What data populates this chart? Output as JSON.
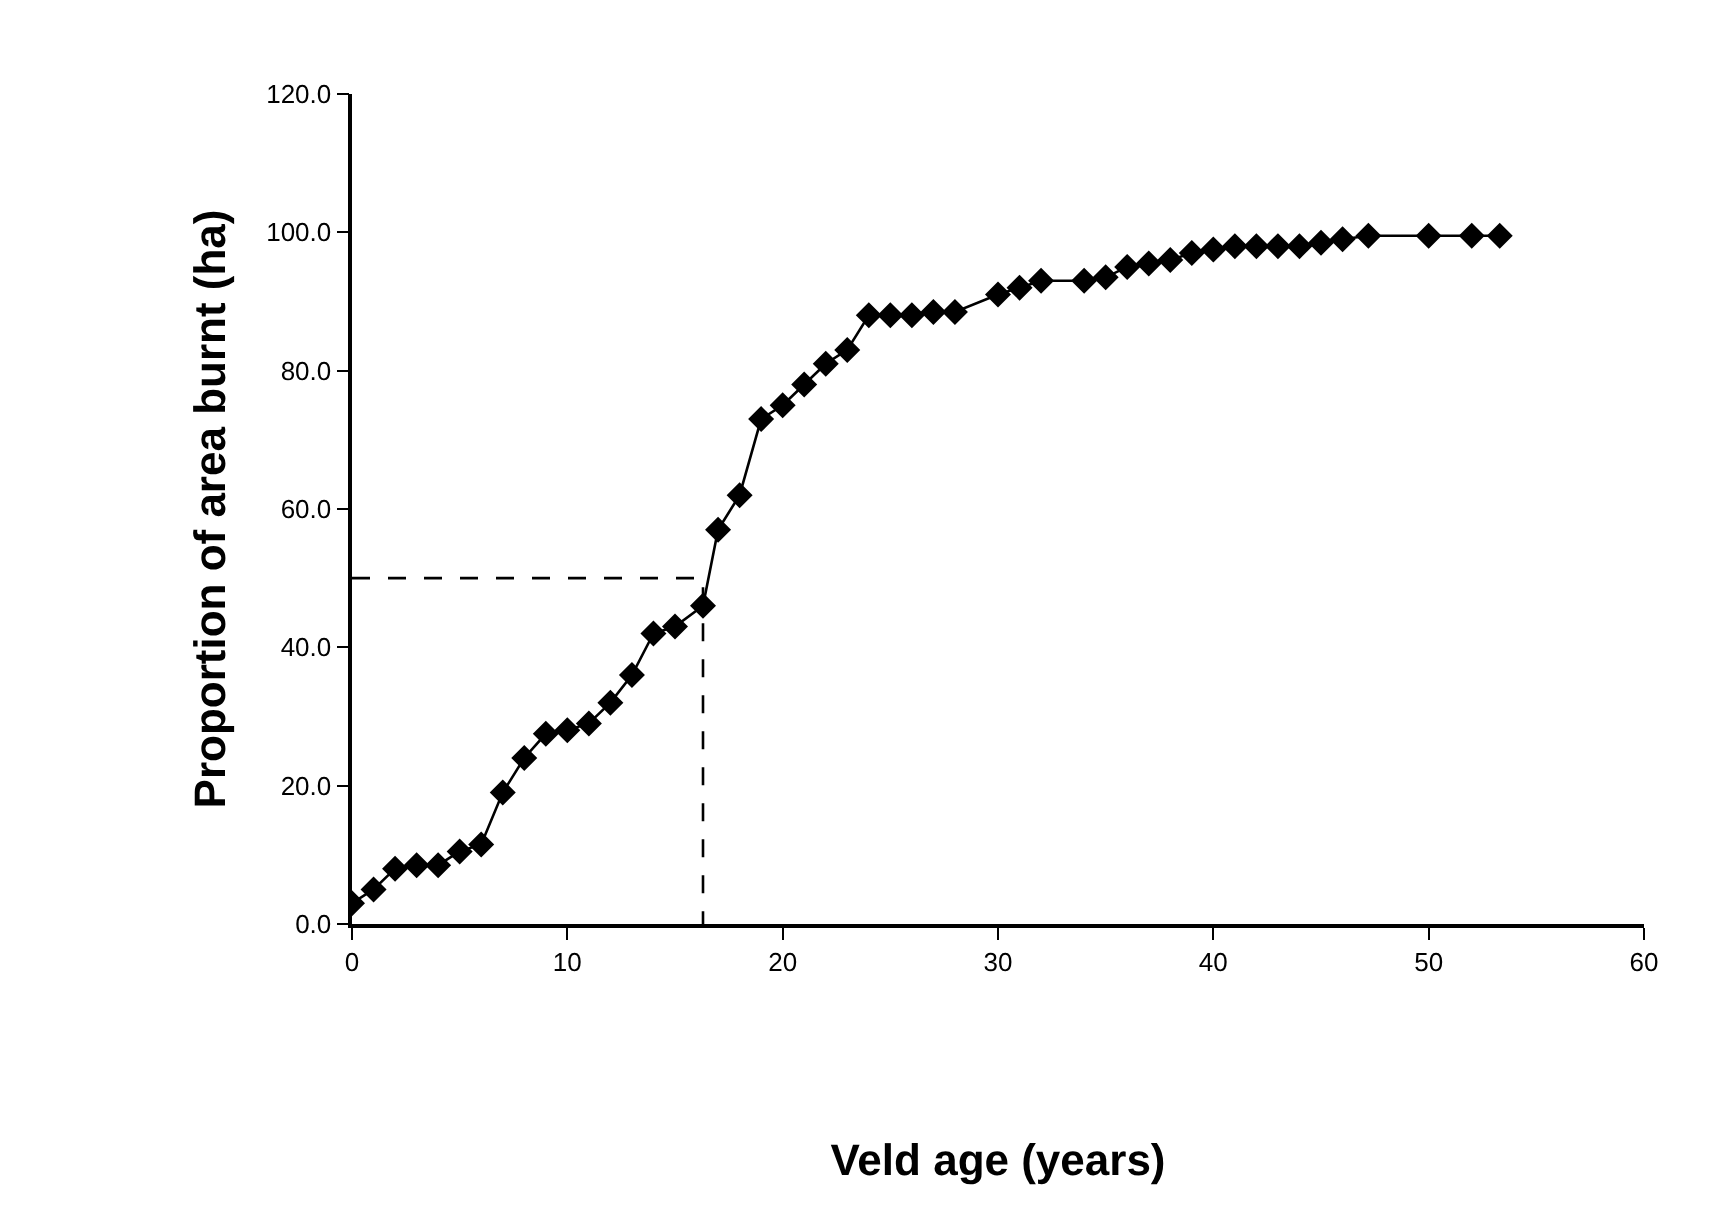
{
  "chart_data": {
    "type": "line",
    "xlabel": "Veld age (years)",
    "ylabel": "Proportion of area burnt (ha)",
    "xlim": [
      0,
      60
    ],
    "xticks": [
      0,
      10,
      20,
      30,
      40,
      50,
      60
    ],
    "ylim": [
      0,
      120
    ],
    "yticks": [
      {
        "value": 0,
        "label": "0.0"
      },
      {
        "value": 20,
        "label": "20.0"
      },
      {
        "value": 40,
        "label": "40.0"
      },
      {
        "value": 60,
        "label": "60.0"
      },
      {
        "value": 80,
        "label": "80.0"
      },
      {
        "value": 100,
        "label": "100.0"
      },
      {
        "value": 120,
        "label": "120.0"
      }
    ],
    "series": [
      {
        "color": "#000000",
        "marker": "diamond",
        "line_style": "solid",
        "x": [
          0,
          1,
          2,
          3,
          4,
          5,
          6,
          7,
          8,
          9,
          10,
          11,
          12,
          13,
          14,
          15,
          16.3,
          17,
          18,
          19,
          20,
          21,
          22,
          23,
          24,
          25,
          26,
          27,
          28,
          30,
          31,
          32,
          34,
          35,
          36,
          37,
          38,
          39,
          40,
          41,
          42,
          43,
          44,
          45,
          46,
          47.2,
          50,
          52,
          53.3
        ],
        "values": [
          3,
          5,
          8,
          8.5,
          8.5,
          10.5,
          11.5,
          19,
          24,
          27.5,
          28,
          29,
          32,
          36,
          42,
          43,
          46,
          57,
          62,
          73,
          75,
          78,
          81,
          83,
          88,
          88,
          88,
          88.5,
          88.5,
          91,
          92,
          93,
          93,
          93.5,
          95,
          95.5,
          96,
          97,
          97.5,
          98,
          98,
          98,
          98,
          98.5,
          99,
          99.5,
          99.5,
          99.5,
          99.5
        ]
      },
      {
        "color": "#000000",
        "marker": "none",
        "line_style": "dashed",
        "x": [
          0,
          16.3,
          16.3
        ],
        "values": [
          50,
          50,
          0
        ]
      }
    ]
  }
}
